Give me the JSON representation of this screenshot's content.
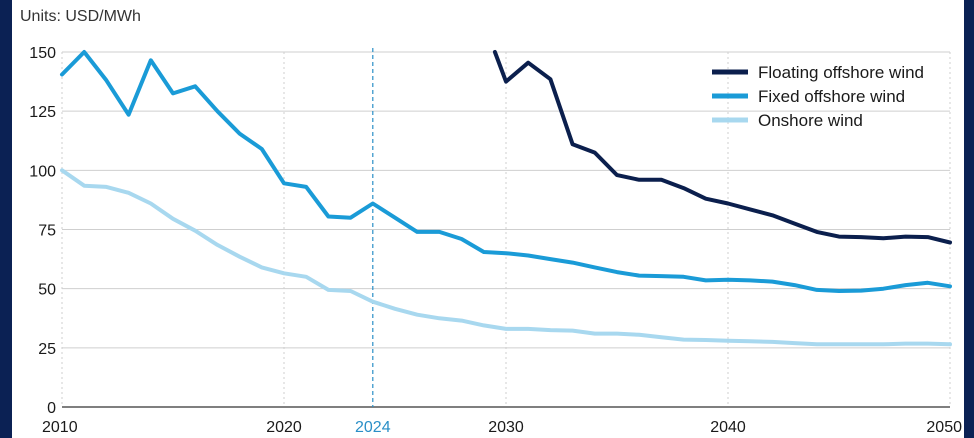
{
  "units_label": "Units: USD/MWh",
  "chart_data": {
    "type": "line",
    "title": "",
    "xlabel": "",
    "ylabel": "Units: USD/MWh",
    "xlim": [
      2010,
      2050
    ],
    "ylim": [
      0,
      150
    ],
    "x_ticks": [
      2010,
      2020,
      2030,
      2040,
      2050
    ],
    "y_ticks": [
      0,
      25,
      50,
      75,
      100,
      125,
      150
    ],
    "marker": {
      "x": 2024,
      "label": "2024",
      "color": "#2a8fc7"
    },
    "grid": {
      "vertical": "dotted",
      "horizontal": "solid"
    },
    "legend_position": "top-right",
    "series": [
      {
        "name": "Floating offshore wind",
        "color": "#0b1f4d",
        "points": [
          [
            2029.5,
            150
          ],
          [
            2030,
            137.5
          ],
          [
            2031,
            145.5
          ],
          [
            2032,
            138.5
          ],
          [
            2033,
            111
          ],
          [
            2034,
            107.5
          ],
          [
            2035,
            98
          ],
          [
            2036,
            96
          ],
          [
            2037,
            96
          ],
          [
            2038,
            92.5
          ],
          [
            2039,
            88
          ],
          [
            2040,
            86
          ],
          [
            2041,
            83.5
          ],
          [
            2042,
            81
          ],
          [
            2043,
            77.5
          ],
          [
            2044,
            74
          ],
          [
            2045,
            72
          ],
          [
            2046,
            71.8
          ],
          [
            2047,
            71.3
          ],
          [
            2048,
            72
          ],
          [
            2049,
            71.8
          ],
          [
            2050,
            69.5
          ]
        ]
      },
      {
        "name": "Fixed offshore wind",
        "color": "#1a9bd7",
        "points": [
          [
            2010,
            140.5
          ],
          [
            2011,
            150
          ],
          [
            2012,
            138
          ],
          [
            2013,
            123.5
          ],
          [
            2014,
            146.5
          ],
          [
            2015,
            132.5
          ],
          [
            2016,
            135.5
          ],
          [
            2017,
            125
          ],
          [
            2018,
            115.5
          ],
          [
            2019,
            109
          ],
          [
            2020,
            94.5
          ],
          [
            2021,
            93
          ],
          [
            2022,
            80.5
          ],
          [
            2023,
            80
          ],
          [
            2024,
            86
          ],
          [
            2025,
            80
          ],
          [
            2026,
            74
          ],
          [
            2027,
            74
          ],
          [
            2028,
            71
          ],
          [
            2029,
            65.5
          ],
          [
            2030,
            65
          ],
          [
            2031,
            64
          ],
          [
            2032,
            62.5
          ],
          [
            2033,
            61
          ],
          [
            2034,
            59
          ],
          [
            2035,
            57
          ],
          [
            2036,
            55.5
          ],
          [
            2037,
            55.3
          ],
          [
            2038,
            55
          ],
          [
            2039,
            53.5
          ],
          [
            2040,
            53.8
          ],
          [
            2041,
            53.5
          ],
          [
            2042,
            53
          ],
          [
            2043,
            51.5
          ],
          [
            2044,
            49.5
          ],
          [
            2045,
            49
          ],
          [
            2046,
            49.2
          ],
          [
            2047,
            50
          ],
          [
            2048,
            51.5
          ],
          [
            2049,
            52.5
          ],
          [
            2050,
            51
          ]
        ]
      },
      {
        "name": "Onshore wind",
        "color": "#a8d8ef",
        "points": [
          [
            2010,
            100
          ],
          [
            2011,
            93.5
          ],
          [
            2012,
            93
          ],
          [
            2013,
            90.5
          ],
          [
            2014,
            86
          ],
          [
            2015,
            79.5
          ],
          [
            2016,
            74.5
          ],
          [
            2017,
            68.5
          ],
          [
            2018,
            63.5
          ],
          [
            2019,
            59
          ],
          [
            2020,
            56.5
          ],
          [
            2021,
            55
          ],
          [
            2022,
            49.5
          ],
          [
            2023,
            49
          ],
          [
            2024,
            44.5
          ],
          [
            2025,
            41.5
          ],
          [
            2026,
            39
          ],
          [
            2027,
            37.5
          ],
          [
            2028,
            36.5
          ],
          [
            2029,
            34.5
          ],
          [
            2030,
            33
          ],
          [
            2031,
            33
          ],
          [
            2032,
            32.5
          ],
          [
            2033,
            32.3
          ],
          [
            2034,
            31
          ],
          [
            2035,
            31
          ],
          [
            2036,
            30.5
          ],
          [
            2037,
            29.5
          ],
          [
            2038,
            28.5
          ],
          [
            2039,
            28.3
          ],
          [
            2040,
            28
          ],
          [
            2041,
            27.8
          ],
          [
            2042,
            27.5
          ],
          [
            2043,
            27
          ],
          [
            2044,
            26.5
          ],
          [
            2045,
            26.5
          ],
          [
            2046,
            26.5
          ],
          [
            2047,
            26.5
          ],
          [
            2048,
            26.8
          ],
          [
            2049,
            26.8
          ],
          [
            2050,
            26.5
          ]
        ]
      }
    ]
  }
}
